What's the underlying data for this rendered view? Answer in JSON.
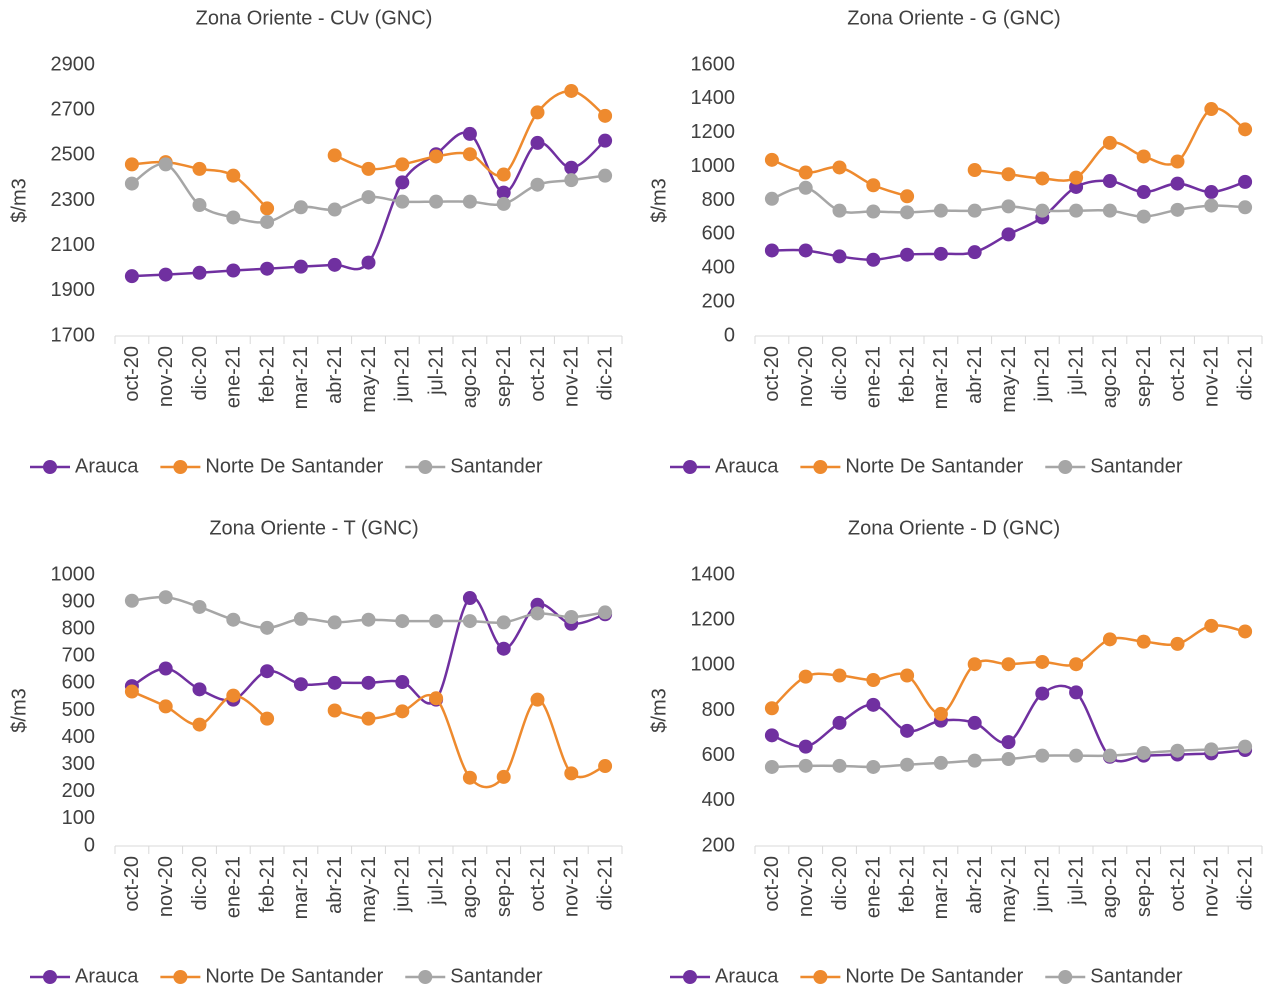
{
  "chart_data": [
    {
      "type": "line",
      "title": "Zona Oriente - CUv (GNC)",
      "ylabel": "$/m3",
      "categories": [
        "oct-20",
        "nov-20",
        "dic-20",
        "ene-21",
        "feb-21",
        "mar-21",
        "abr-21",
        "may-21",
        "jun-21",
        "jul-21",
        "ago-21",
        "sep-21",
        "oct-21",
        "nov-21",
        "dic-21"
      ],
      "series": [
        {
          "name": "Arauca",
          "color": "#7030a0",
          "values": [
            1965,
            1972,
            1980,
            1990,
            1998,
            2007,
            2015,
            2025,
            2380,
            2505,
            2595,
            2335,
            2555,
            2445,
            2565
          ]
        },
        {
          "name": "Norte De Santander",
          "color": "#ee8a2e",
          "values": [
            2460,
            2470,
            2440,
            2410,
            2265,
            null,
            2500,
            2440,
            2460,
            2495,
            2505,
            2415,
            2690,
            2785,
            2675
          ]
        },
        {
          "name": "Santander",
          "color": "#a6a6a6",
          "values": [
            2375,
            2460,
            2280,
            2225,
            2205,
            2270,
            2260,
            2315,
            2295,
            2295,
            2295,
            2285,
            2370,
            2390,
            2410
          ]
        }
      ],
      "ylim": [
        1700,
        2900
      ],
      "yticks": [
        1700,
        1900,
        2100,
        2300,
        2500,
        2700,
        2900
      ]
    },
    {
      "type": "line",
      "title": "Zona Oriente - G (GNC)",
      "ylabel": "$/m3",
      "categories": [
        "oct-20",
        "nov-20",
        "dic-20",
        "ene-21",
        "feb-21",
        "mar-21",
        "abr-21",
        "may-21",
        "jun-21",
        "jul-21",
        "ago-21",
        "sep-21",
        "oct-21",
        "nov-21",
        "dic-21"
      ],
      "series": [
        {
          "name": "Arauca",
          "color": "#7030a0",
          "values": [
            505,
            505,
            470,
            450,
            480,
            485,
            495,
            600,
            700,
            880,
            915,
            850,
            900,
            850,
            910
          ]
        },
        {
          "name": "Norte De Santander",
          "color": "#ee8a2e",
          "values": [
            1040,
            965,
            995,
            890,
            825,
            null,
            980,
            955,
            930,
            935,
            1140,
            1060,
            1030,
            1340,
            1220
          ]
        },
        {
          "name": "Santander",
          "color": "#a6a6a6",
          "values": [
            810,
            875,
            740,
            735,
            730,
            740,
            740,
            765,
            740,
            740,
            740,
            705,
            745,
            770,
            760
          ]
        }
      ],
      "ylim": [
        0,
        1600
      ],
      "yticks": [
        0,
        200,
        400,
        600,
        800,
        1000,
        1200,
        1400,
        1600
      ]
    },
    {
      "type": "line",
      "title": "Zona Oriente - T (GNC)",
      "ylabel": "$/m3",
      "categories": [
        "oct-20",
        "nov-20",
        "dic-20",
        "ene-21",
        "feb-21",
        "mar-21",
        "abr-21",
        "may-21",
        "jun-21",
        "jul-21",
        "ago-21",
        "sep-21",
        "oct-21",
        "nov-21",
        "dic-21"
      ],
      "series": [
        {
          "name": "Arauca",
          "color": "#7030a0",
          "values": [
            590,
            655,
            578,
            540,
            645,
            597,
            602,
            602,
            605,
            540,
            915,
            728,
            890,
            820,
            855
          ]
        },
        {
          "name": "Norte De Santander",
          "color": "#ee8a2e",
          "values": [
            570,
            515,
            448,
            555,
            470,
            null,
            500,
            470,
            497,
            545,
            252,
            255,
            540,
            268,
            295
          ]
        },
        {
          "name": "Santander",
          "color": "#a6a6a6",
          "values": [
            905,
            918,
            882,
            835,
            805,
            838,
            825,
            835,
            830,
            830,
            830,
            825,
            858,
            845,
            862
          ]
        }
      ],
      "ylim": [
        0,
        1000
      ],
      "yticks": [
        0,
        100,
        200,
        300,
        400,
        500,
        600,
        700,
        800,
        900,
        1000
      ]
    },
    {
      "type": "line",
      "title": "Zona Oriente - D (GNC)",
      "ylabel": "$/m3",
      "categories": [
        "oct-20",
        "nov-20",
        "dic-20",
        "ene-21",
        "feb-21",
        "mar-21",
        "abr-21",
        "may-21",
        "jun-21",
        "jul-21",
        "ago-21",
        "sep-21",
        "oct-21",
        "nov-21",
        "dic-21"
      ],
      "series": [
        {
          "name": "Arauca",
          "color": "#7030a0",
          "values": [
            690,
            640,
            745,
            825,
            710,
            755,
            745,
            660,
            875,
            880,
            595,
            600,
            605,
            610,
            625
          ]
        },
        {
          "name": "Norte De Santander",
          "color": "#ee8a2e",
          "values": [
            810,
            950,
            955,
            935,
            955,
            785,
            1005,
            1005,
            1015,
            1005,
            1115,
            1105,
            1095,
            1175,
            1150
          ]
        },
        {
          "name": "Santander",
          "color": "#a6a6a6",
          "values": [
            550,
            555,
            555,
            550,
            560,
            568,
            578,
            585,
            600,
            600,
            600,
            612,
            622,
            628,
            640
          ]
        }
      ],
      "ylim": [
        200,
        1400
      ],
      "yticks": [
        200,
        400,
        600,
        800,
        1000,
        1200,
        1400
      ]
    }
  ]
}
